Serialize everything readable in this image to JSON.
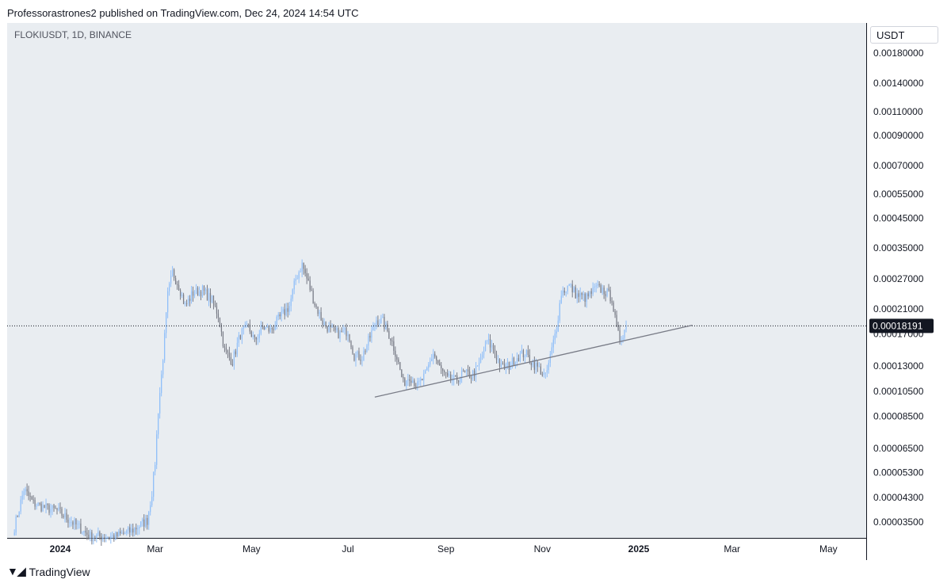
{
  "header": {
    "publisher_text": "Professorastrones2 published on TradingView.com, Dec 24, 2024 14:54 UTC"
  },
  "chart_header": {
    "symbol": "FLOKIUSDT, 1D, BINANCE"
  },
  "price_axis": {
    "currency": "USDT"
  },
  "footer": {
    "brand": "TradingView"
  },
  "colors": {
    "up": "#90bff9",
    "down": "#787b86",
    "trendline": "#787b86",
    "plot_bg": "#e9edf1",
    "price_tag": "#131722"
  },
  "chart_data": {
    "type": "candlestick",
    "symbol": "FLOKIUSDT",
    "timeframe": "1D",
    "exchange": "BINANCE",
    "y_scale": "log",
    "y_ticks": [
      "0.00180000",
      "0.00140000",
      "0.00110000",
      "0.00090000",
      "0.00070000",
      "0.00055000",
      "0.00045000",
      "0.00035000",
      "0.00027000",
      "0.00021000",
      "0.00017000",
      "0.00013000",
      "0.00010500",
      "0.00008500",
      "0.00006500",
      "0.00005300",
      "0.00004300",
      "0.00003500"
    ],
    "x_ticks": [
      {
        "label": "2024",
        "date": "2024-01-01",
        "bold": true
      },
      {
        "label": "Mar",
        "date": "2024-03-01",
        "bold": false
      },
      {
        "label": "May",
        "date": "2024-05-01",
        "bold": false
      },
      {
        "label": "Jul",
        "date": "2024-07-01",
        "bold": false
      },
      {
        "label": "Sep",
        "date": "2024-09-01",
        "bold": false
      },
      {
        "label": "Nov",
        "date": "2024-11-01",
        "bold": false
      },
      {
        "label": "2025",
        "date": "2025-01-01",
        "bold": true
      },
      {
        "label": "Mar",
        "date": "2025-03-01",
        "bold": false
      },
      {
        "label": "May",
        "date": "2025-05-01",
        "bold": false
      }
    ],
    "last_price": "0.00018191",
    "last_price_value": 0.00018191,
    "trendline": {
      "start": {
        "date": "2024-07-18",
        "price": 0.0001
      },
      "end": {
        "date": "2025-02-04",
        "price": 0.000183
      }
    },
    "close_anchors": [
      {
        "date": "2023-12-03",
        "close": 3.35e-05
      },
      {
        "date": "2023-12-09",
        "close": 4.6e-05
      },
      {
        "date": "2023-12-15",
        "close": 4.1e-05
      },
      {
        "date": "2023-12-22",
        "close": 3.95e-05
      },
      {
        "date": "2023-12-30",
        "close": 3.85e-05
      },
      {
        "date": "2024-01-10",
        "close": 3.45e-05
      },
      {
        "date": "2024-01-20",
        "close": 3.1e-05
      },
      {
        "date": "2024-02-05",
        "close": 3.1e-05
      },
      {
        "date": "2024-02-15",
        "close": 3.25e-05
      },
      {
        "date": "2024-02-25",
        "close": 3.55e-05
      },
      {
        "date": "2024-02-28",
        "close": 4.5e-05
      },
      {
        "date": "2024-03-01",
        "close": 5.8e-05
      },
      {
        "date": "2024-03-03",
        "close": 9e-05
      },
      {
        "date": "2024-03-05",
        "close": 0.00012
      },
      {
        "date": "2024-03-07",
        "close": 0.000165
      },
      {
        "date": "2024-03-09",
        "close": 0.000235
      },
      {
        "date": "2024-03-12",
        "close": 0.000285
      },
      {
        "date": "2024-03-16",
        "close": 0.000255
      },
      {
        "date": "2024-03-20",
        "close": 0.000215
      },
      {
        "date": "2024-03-25",
        "close": 0.00024
      },
      {
        "date": "2024-03-31",
        "close": 0.000245
      },
      {
        "date": "2024-04-06",
        "close": 0.000225
      },
      {
        "date": "2024-04-10",
        "close": 0.0002
      },
      {
        "date": "2024-04-14",
        "close": 0.000148
      },
      {
        "date": "2024-04-19",
        "close": 0.000135
      },
      {
        "date": "2024-04-24",
        "close": 0.00017
      },
      {
        "date": "2024-04-29",
        "close": 0.00018
      },
      {
        "date": "2024-05-03",
        "close": 0.00016
      },
      {
        "date": "2024-05-08",
        "close": 0.00018
      },
      {
        "date": "2024-05-13",
        "close": 0.000175
      },
      {
        "date": "2024-05-19",
        "close": 0.000195
      },
      {
        "date": "2024-05-25",
        "close": 0.000215
      },
      {
        "date": "2024-05-29",
        "close": 0.00027
      },
      {
        "date": "2024-06-02",
        "close": 0.000305
      },
      {
        "date": "2024-06-06",
        "close": 0.00026
      },
      {
        "date": "2024-06-10",
        "close": 0.00022
      },
      {
        "date": "2024-06-15",
        "close": 0.000188
      },
      {
        "date": "2024-06-20",
        "close": 0.000175
      },
      {
        "date": "2024-06-26",
        "close": 0.00017
      },
      {
        "date": "2024-07-01",
        "close": 0.000175
      },
      {
        "date": "2024-07-05",
        "close": 0.000142
      },
      {
        "date": "2024-07-10",
        "close": 0.00014
      },
      {
        "date": "2024-07-14",
        "close": 0.00016
      },
      {
        "date": "2024-07-19",
        "close": 0.000192
      },
      {
        "date": "2024-07-23",
        "close": 0.000188
      },
      {
        "date": "2024-07-28",
        "close": 0.000165
      },
      {
        "date": "2024-08-01",
        "close": 0.00014
      },
      {
        "date": "2024-08-05",
        "close": 0.000112
      },
      {
        "date": "2024-08-09",
        "close": 0.00012
      },
      {
        "date": "2024-08-14",
        "close": 0.00011
      },
      {
        "date": "2024-08-19",
        "close": 0.00012
      },
      {
        "date": "2024-08-24",
        "close": 0.000145
      },
      {
        "date": "2024-08-28",
        "close": 0.000128
      },
      {
        "date": "2024-09-02",
        "close": 0.000116
      },
      {
        "date": "2024-09-07",
        "close": 0.000115
      },
      {
        "date": "2024-09-12",
        "close": 0.000122
      },
      {
        "date": "2024-09-17",
        "close": 0.00012
      },
      {
        "date": "2024-09-21",
        "close": 0.000127
      },
      {
        "date": "2024-09-27",
        "close": 0.00016
      },
      {
        "date": "2024-10-01",
        "close": 0.00015
      },
      {
        "date": "2024-10-06",
        "close": 0.000128
      },
      {
        "date": "2024-10-11",
        "close": 0.00013
      },
      {
        "date": "2024-10-16",
        "close": 0.00014
      },
      {
        "date": "2024-10-21",
        "close": 0.000145
      },
      {
        "date": "2024-10-26",
        "close": 0.000133
      },
      {
        "date": "2024-10-31",
        "close": 0.000125
      },
      {
        "date": "2024-11-03",
        "close": 0.000118
      },
      {
        "date": "2024-11-06",
        "close": 0.00014
      },
      {
        "date": "2024-11-10",
        "close": 0.00018
      },
      {
        "date": "2024-11-13",
        "close": 0.00024
      },
      {
        "date": "2024-11-18",
        "close": 0.000255
      },
      {
        "date": "2024-11-23",
        "close": 0.000235
      },
      {
        "date": "2024-11-29",
        "close": 0.00023
      },
      {
        "date": "2024-12-05",
        "close": 0.00025
      },
      {
        "date": "2024-12-10",
        "close": 0.000245
      },
      {
        "date": "2024-12-15",
        "close": 0.00023
      },
      {
        "date": "2024-12-18",
        "close": 0.000175
      },
      {
        "date": "2024-12-20",
        "close": 0.000162
      },
      {
        "date": "2024-12-24",
        "close": 0.00018191
      }
    ]
  }
}
